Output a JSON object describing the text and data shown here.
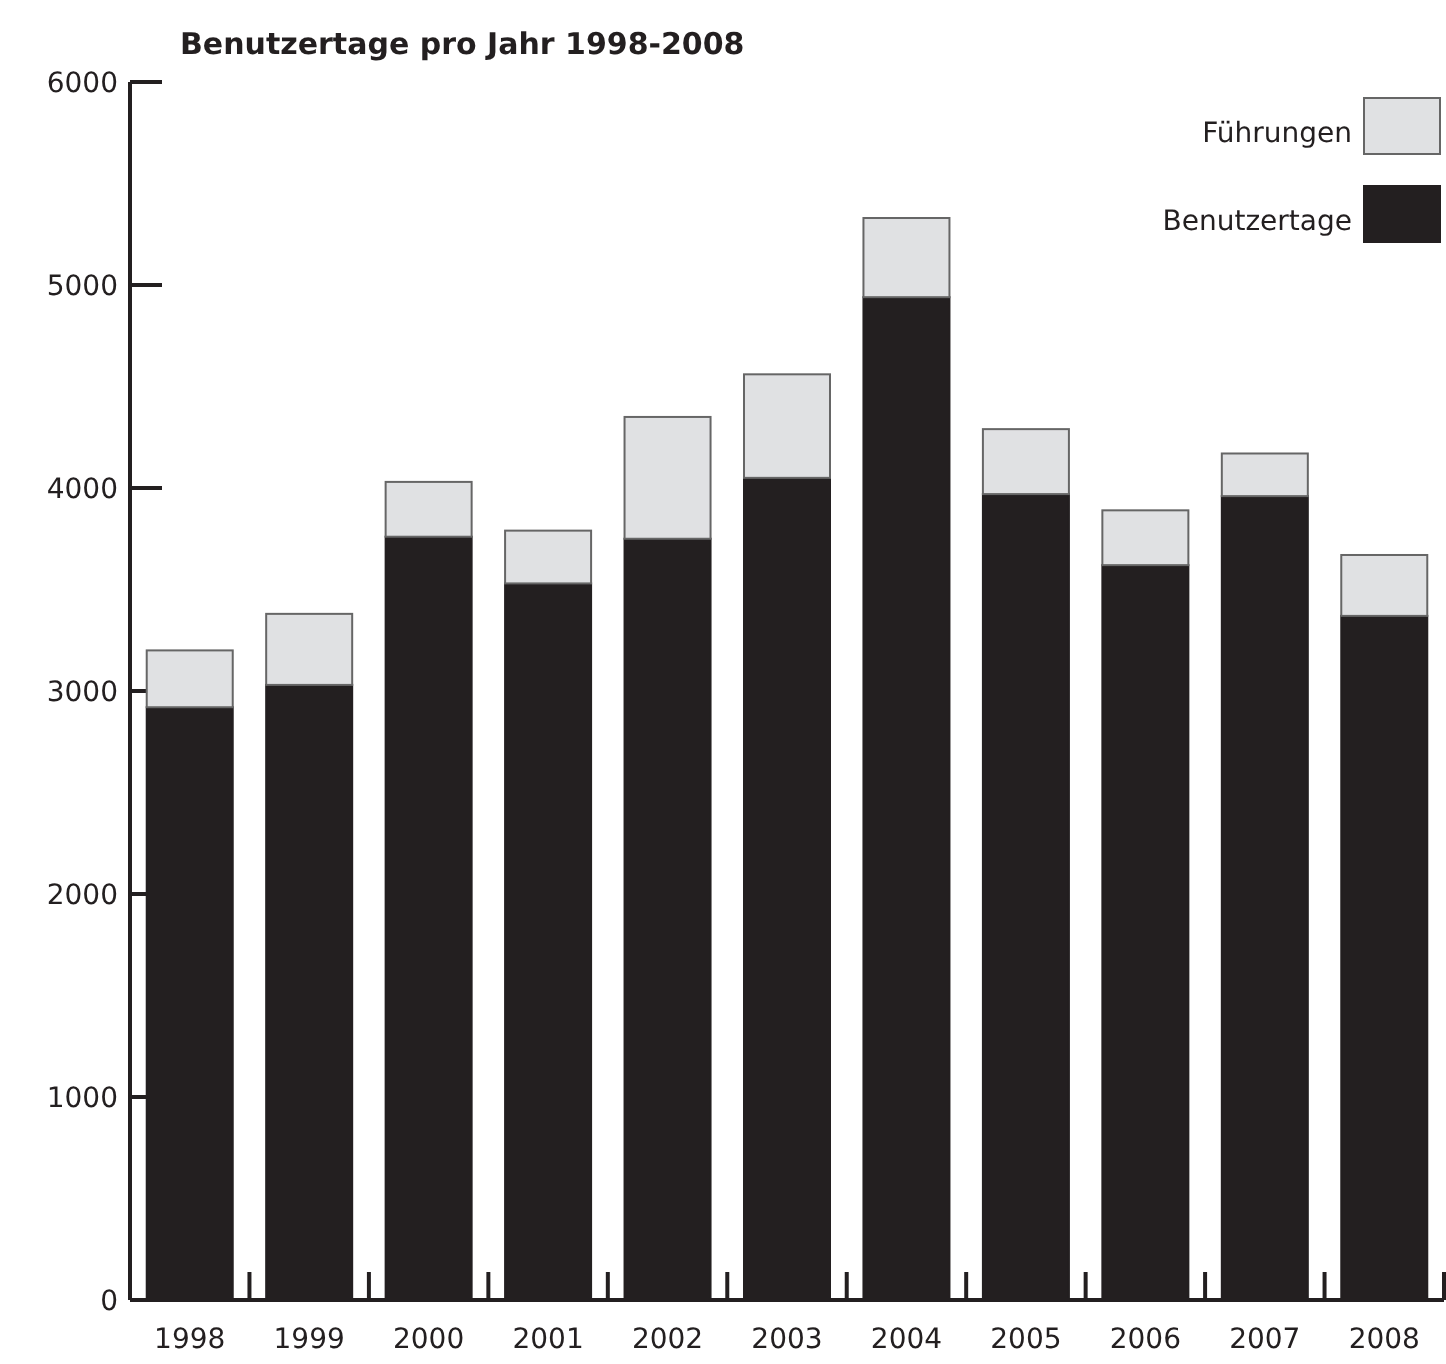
{
  "chart_data": {
    "type": "bar",
    "title": "Benutzertage pro Jahr 1998-2008",
    "categories": [
      "1998",
      "1999",
      "2000",
      "2001",
      "2002",
      "2003",
      "2004",
      "2005",
      "2006",
      "2007",
      "2008"
    ],
    "stacked": true,
    "legend": "top right",
    "ylim": [
      0,
      6000
    ],
    "yticks": [
      0,
      1000,
      2000,
      3000,
      4000,
      5000,
      6000
    ],
    "grid": false,
    "series": [
      {
        "name": "Benutzertage",
        "color": "#231f20",
        "values": [
          2920,
          3030,
          3760,
          3530,
          3750,
          4050,
          4940,
          3970,
          3620,
          3960,
          3370
        ]
      },
      {
        "name": "Führungen",
        "color": "#e0e1e3",
        "values": [
          280,
          350,
          270,
          260,
          600,
          510,
          390,
          320,
          270,
          210,
          300
        ]
      }
    ]
  }
}
